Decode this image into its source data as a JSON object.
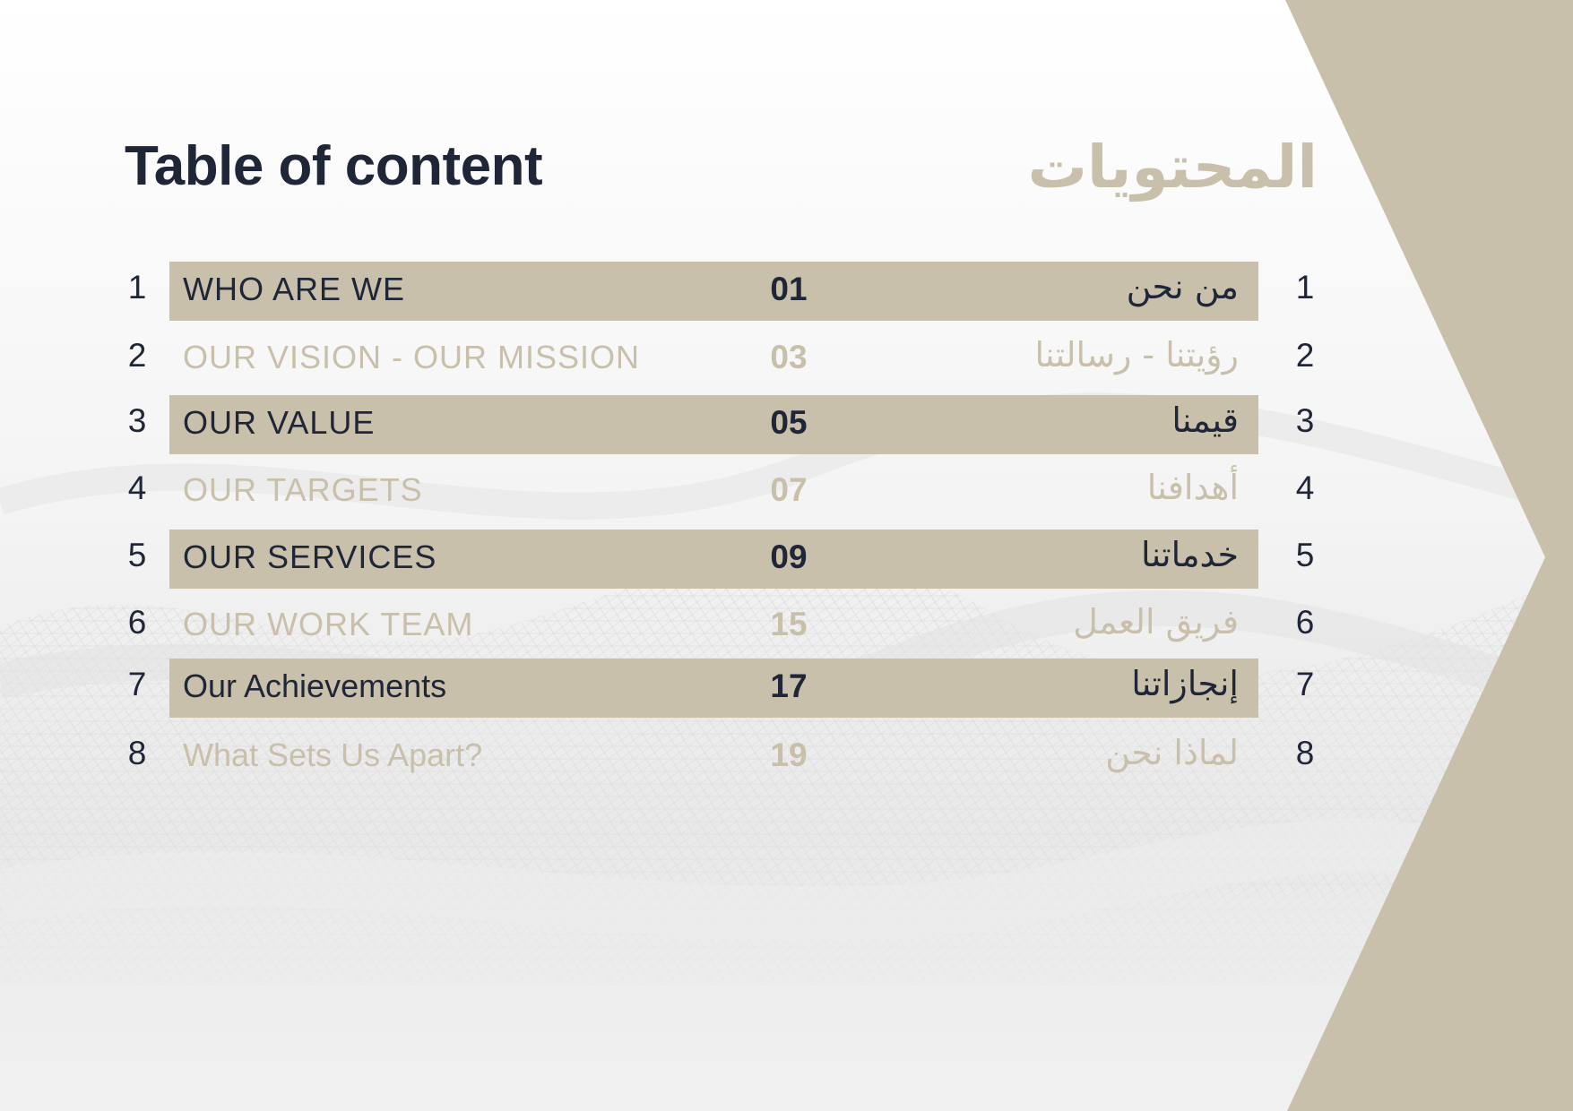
{
  "title_en": "Table of content",
  "title_ar": "المحتويات",
  "colors": {
    "accent": "#c9c0ab",
    "text_dark": "#1f2637",
    "background": "#ffffff"
  },
  "rows": [
    {
      "index": "1",
      "label_en": "WHO ARE WE",
      "page": "01",
      "label_ar": "من نحن",
      "highlighted": true
    },
    {
      "index": "2",
      "label_en": "OUR VISION - OUR MISSION",
      "page": "03",
      "label_ar": "رؤيتنا - رسالتنا",
      "highlighted": false
    },
    {
      "index": "3",
      "label_en": "OUR VALUE",
      "page": "05",
      "label_ar": "قيمنا",
      "highlighted": true
    },
    {
      "index": "4",
      "label_en": "OUR TARGETS",
      "page": "07",
      "label_ar": "أهدافنا",
      "highlighted": false
    },
    {
      "index": "5",
      "label_en": "OUR SERVICES",
      "page": "09",
      "label_ar": "خدماتنا",
      "highlighted": true
    },
    {
      "index": "6",
      "label_en": "OUR WORK TEAM",
      "page": "15",
      "label_ar": "فريق العمل",
      "highlighted": false
    },
    {
      "index": "7",
      "label_en": "Our Achievements",
      "page": "17",
      "label_ar": "إنجازاتنا",
      "highlighted": true
    },
    {
      "index": "8",
      "label_en": "What Sets Us Apart?",
      "page": "19",
      "label_ar": "لماذا نحن",
      "highlighted": false
    }
  ]
}
